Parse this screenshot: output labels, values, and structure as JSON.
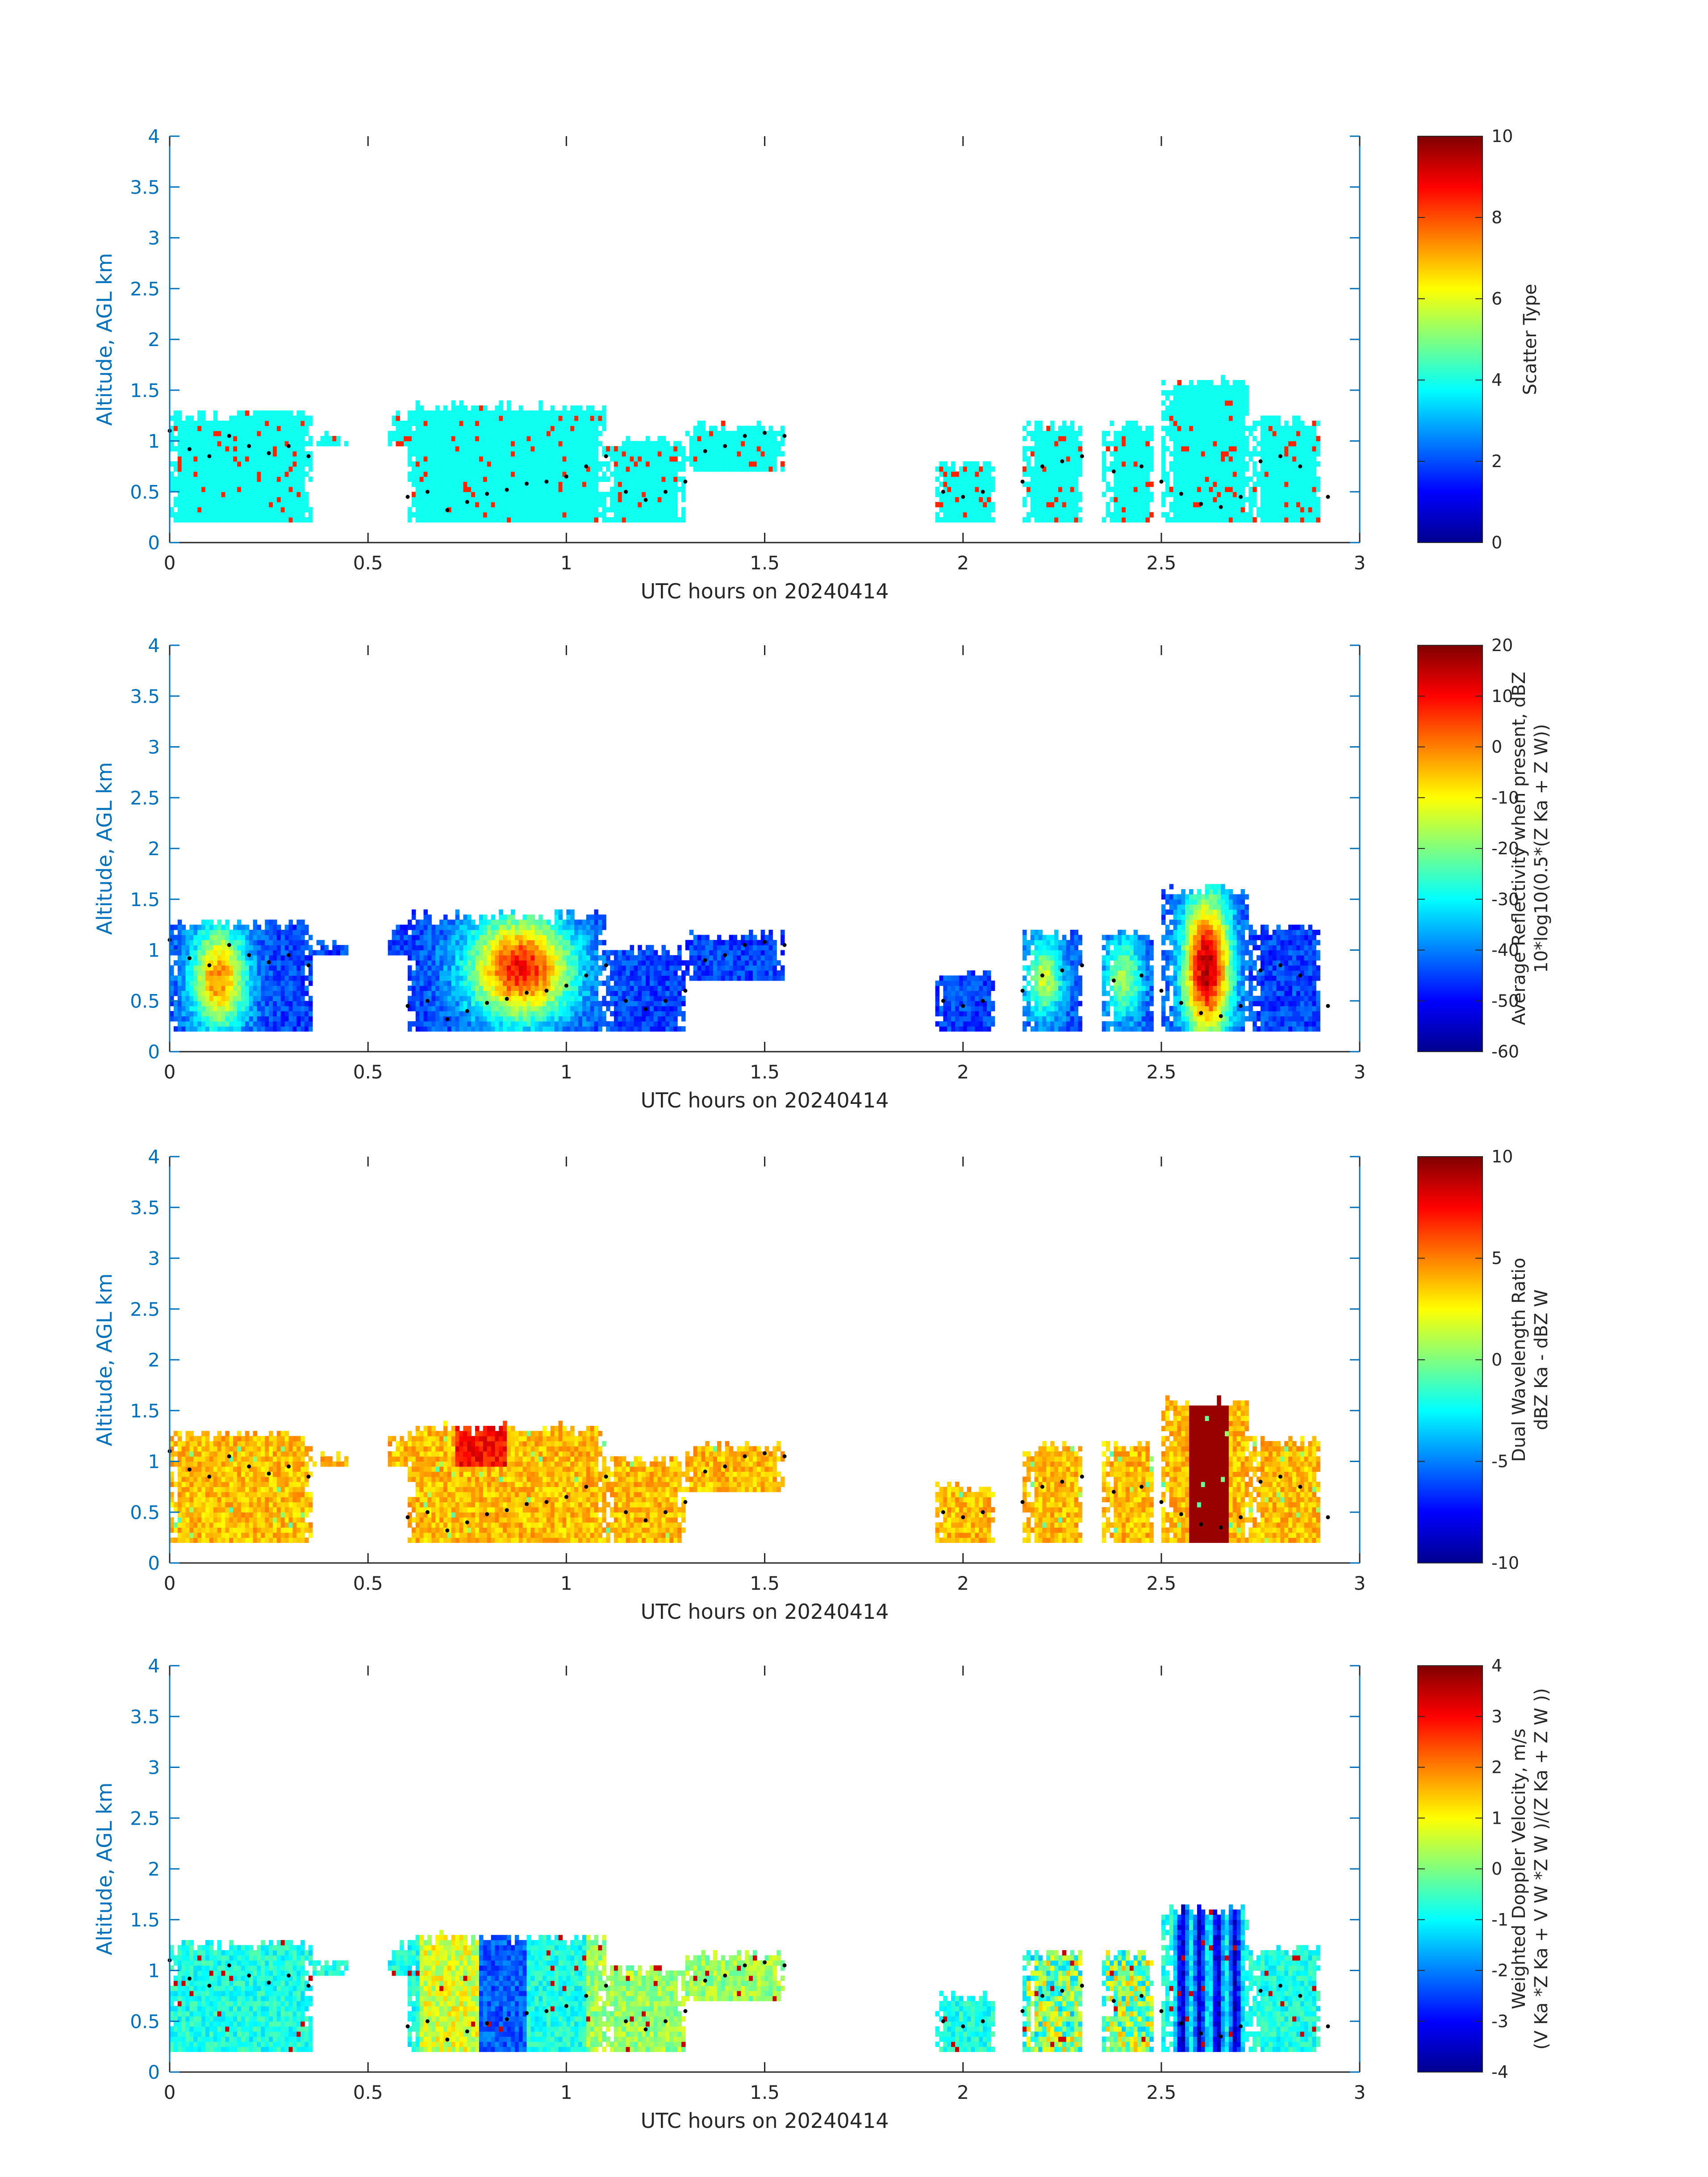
{
  "chart_data": [
    {
      "type": "heatmap",
      "title": "",
      "xlabel": "UTC hours on 20240414",
      "ylabel": "Altitude, AGL km",
      "xlim": [
        0,
        3
      ],
      "ylim": [
        0,
        4
      ],
      "xticks": [
        0,
        0.5,
        1,
        1.5,
        2,
        2.5,
        3
      ],
      "xtick_labels": [
        "0",
        "0.5",
        "1",
        "1.5",
        "2",
        "2.5",
        "3"
      ],
      "yticks": [
        0,
        0.5,
        1,
        1.5,
        2,
        2.5,
        3,
        3.5,
        4
      ],
      "ytick_labels": [
        "0",
        "0.5",
        "1",
        "1.5",
        "2",
        "2.5",
        "3",
        "3.5",
        "4"
      ],
      "colorbar": {
        "label_lines": [
          "Scatter Type"
        ],
        "range": [
          0,
          10
        ],
        "ticks": [
          0,
          2,
          4,
          6,
          8,
          10
        ],
        "tick_labels": [
          "0",
          "2",
          "4",
          "6",
          "8",
          "10"
        ]
      },
      "field": "scatter_type",
      "dominant_value": 3.9,
      "secondary_value": 8.4
    },
    {
      "type": "heatmap",
      "title": "",
      "xlabel": "UTC hours on 20240414",
      "ylabel": "Altitude, AGL km",
      "xlim": [
        0,
        3
      ],
      "ylim": [
        0,
        4
      ],
      "xticks": [
        0,
        0.5,
        1,
        1.5,
        2,
        2.5,
        3
      ],
      "xtick_labels": [
        "0",
        "0.5",
        "1",
        "1.5",
        "2",
        "2.5",
        "3"
      ],
      "yticks": [
        0,
        0.5,
        1,
        1.5,
        2,
        2.5,
        3,
        3.5,
        4
      ],
      "ytick_labels": [
        "0",
        "0.5",
        "1",
        "1.5",
        "2",
        "2.5",
        "3",
        "3.5",
        "4"
      ],
      "colorbar": {
        "label_lines": [
          "Average Reflectivity when present, dBZ",
          "10*log10(0.5*(Z Ka + Z W))"
        ],
        "range": [
          -60,
          20
        ],
        "ticks": [
          -60,
          -50,
          -40,
          -30,
          -20,
          -10,
          0,
          10,
          20
        ],
        "tick_labels": [
          "-60",
          "-50",
          "-40",
          "-30",
          "-20",
          "-10",
          "0",
          "10",
          "20"
        ]
      },
      "field": "reflectivity_dbz"
    },
    {
      "type": "heatmap",
      "title": "",
      "xlabel": "UTC hours on 20240414",
      "ylabel": "Altitude, AGL km",
      "xlim": [
        0,
        3
      ],
      "ylim": [
        0,
        4
      ],
      "xticks": [
        0,
        0.5,
        1,
        1.5,
        2,
        2.5,
        3
      ],
      "xtick_labels": [
        "0",
        "0.5",
        "1",
        "1.5",
        "2",
        "2.5",
        "3"
      ],
      "yticks": [
        0,
        0.5,
        1,
        1.5,
        2,
        2.5,
        3,
        3.5,
        4
      ],
      "ytick_labels": [
        "0",
        "0.5",
        "1",
        "1.5",
        "2",
        "2.5",
        "3",
        "3.5",
        "4"
      ],
      "colorbar": {
        "label_lines": [
          "Dual Wavelength Ratio",
          "dBZ Ka - dBZ W"
        ],
        "range": [
          -10,
          10
        ],
        "ticks": [
          -10,
          -5,
          0,
          5,
          10
        ],
        "tick_labels": [
          "-10",
          "-5",
          "0",
          "5",
          "10"
        ]
      },
      "field": "dual_wavelength_ratio_db"
    },
    {
      "type": "heatmap",
      "title": "",
      "xlabel": "UTC hours on 20240414",
      "ylabel": "Altitude, AGL km",
      "xlim": [
        0,
        3
      ],
      "ylim": [
        0,
        4
      ],
      "xticks": [
        0,
        0.5,
        1,
        1.5,
        2,
        2.5,
        3
      ],
      "xtick_labels": [
        "0",
        "0.5",
        "1",
        "1.5",
        "2",
        "2.5",
        "3"
      ],
      "yticks": [
        0,
        0.5,
        1,
        1.5,
        2,
        2.5,
        3,
        3.5,
        4
      ],
      "ytick_labels": [
        "0",
        "0.5",
        "1",
        "1.5",
        "2",
        "2.5",
        "3",
        "3.5",
        "4"
      ],
      "colorbar": {
        "label_lines": [
          "Weighted Doppler Velocity, m/s",
          "(V Ka *Z Ka + V W *Z W )/(Z Ka + Z W ))"
        ],
        "range": [
          -4,
          4
        ],
        "ticks": [
          -4,
          -3,
          -2,
          -1,
          0,
          1,
          2,
          3,
          4
        ],
        "tick_labels": [
          "-4",
          "-3",
          "-2",
          "-1",
          "0",
          "1",
          "2",
          "3",
          "4"
        ]
      },
      "field": "doppler_velocity_ms"
    }
  ],
  "cloud_segments": [
    {
      "t0": 0.0,
      "t1": 0.36,
      "base": 0.2,
      "top": 1.3
    },
    {
      "t0": 0.36,
      "t1": 0.45,
      "base": 0.95,
      "top": 1.1
    },
    {
      "t0": 0.55,
      "t1": 0.62,
      "base": 0.95,
      "top": 1.28
    },
    {
      "t0": 0.6,
      "t1": 1.1,
      "base": 0.2,
      "top": 1.36
    },
    {
      "t0": 1.1,
      "t1": 1.3,
      "base": 0.2,
      "top": 1.05
    },
    {
      "t0": 1.3,
      "t1": 1.55,
      "base": 0.7,
      "top": 1.18
    },
    {
      "t0": 1.93,
      "t1": 2.08,
      "base": 0.2,
      "top": 0.8
    },
    {
      "t0": 2.15,
      "t1": 2.3,
      "base": 0.2,
      "top": 1.2
    },
    {
      "t0": 2.35,
      "t1": 2.48,
      "base": 0.2,
      "top": 1.2
    },
    {
      "t0": 2.5,
      "t1": 2.72,
      "base": 0.2,
      "top": 1.62
    },
    {
      "t0": 2.72,
      "t1": 2.9,
      "base": 0.2,
      "top": 1.25
    }
  ],
  "dotted_line": {
    "x": [
      0.0,
      0.05,
      0.1,
      0.15,
      0.2,
      0.25,
      0.3,
      0.35,
      0.6,
      0.65,
      0.7,
      0.75,
      0.8,
      0.85,
      0.9,
      0.95,
      1.0,
      1.05,
      1.1,
      1.15,
      1.2,
      1.25,
      1.3,
      1.35,
      1.4,
      1.45,
      1.5,
      1.55,
      1.95,
      2.0,
      2.05,
      2.15,
      2.2,
      2.25,
      2.3,
      2.38,
      2.45,
      2.5,
      2.55,
      2.6,
      2.65,
      2.7,
      2.75,
      2.8,
      2.85,
      2.92
    ],
    "y": [
      1.1,
      0.92,
      0.85,
      1.05,
      0.95,
      0.88,
      0.95,
      0.85,
      0.45,
      0.5,
      0.32,
      0.4,
      0.48,
      0.52,
      0.58,
      0.6,
      0.65,
      0.75,
      0.85,
      0.5,
      0.42,
      0.5,
      0.6,
      0.9,
      0.95,
      1.05,
      1.08,
      1.05,
      0.5,
      0.45,
      0.5,
      0.6,
      0.75,
      0.8,
      0.85,
      0.7,
      0.75,
      0.6,
      0.48,
      0.38,
      0.35,
      0.45,
      0.8,
      0.85,
      0.75,
      0.45
    ]
  }
}
